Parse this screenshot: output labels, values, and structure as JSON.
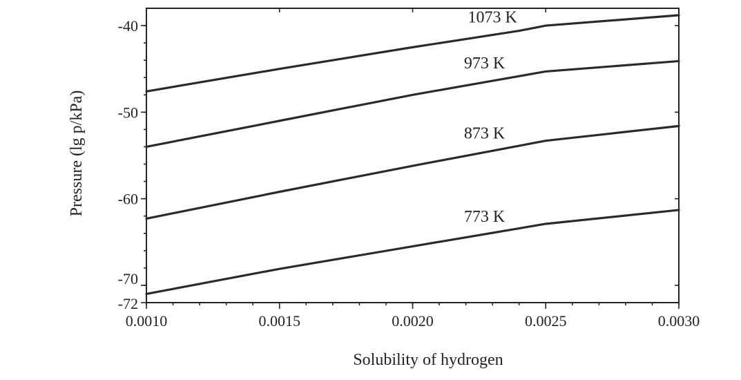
{
  "chart_data": {
    "type": "line",
    "xlabel": "Solubility of hydrogen",
    "ylabel": "Pressure (lg p/kPa)",
    "xlim": [
      0.001,
      0.003
    ],
    "ylim": [
      -72,
      -38
    ],
    "x_ticks": [
      {
        "value": 0.001,
        "label": "0.0010"
      },
      {
        "value": 0.0015,
        "label": "0.0015"
      },
      {
        "value": 0.002,
        "label": "0.0020"
      },
      {
        "value": 0.0025,
        "label": "0.0025"
      },
      {
        "value": 0.003,
        "label": "0.0030"
      }
    ],
    "y_ticks": [
      {
        "value": -40,
        "label": "-40"
      },
      {
        "value": -50,
        "label": "-50"
      },
      {
        "value": -60,
        "label": "-60"
      },
      {
        "value": -70,
        "label": "-70"
      },
      {
        "value": -72,
        "label": "-72"
      }
    ],
    "grid": false,
    "legend": "none",
    "series": [
      {
        "name": "1073 K",
        "x": [
          0.001,
          0.0015,
          0.002,
          0.0024,
          0.0025,
          0.003
        ],
        "y": [
          -47.6,
          -45.0,
          -42.5,
          -40.6,
          -40.0,
          -38.8
        ]
      },
      {
        "name": "973 K",
        "x": [
          0.001,
          0.0015,
          0.002,
          0.0025,
          0.003
        ],
        "y": [
          -54.0,
          -51.0,
          -48.0,
          -45.3,
          -44.1
        ]
      },
      {
        "name": "873 K",
        "x": [
          0.001,
          0.0015,
          0.002,
          0.0025,
          0.003
        ],
        "y": [
          -62.3,
          -59.2,
          -56.2,
          -53.3,
          -51.6
        ]
      },
      {
        "name": "773 K",
        "x": [
          0.001,
          0.0015,
          0.002,
          0.0025,
          0.003
        ],
        "y": [
          -71.0,
          -68.1,
          -65.5,
          -62.9,
          -61.3
        ]
      }
    ]
  }
}
